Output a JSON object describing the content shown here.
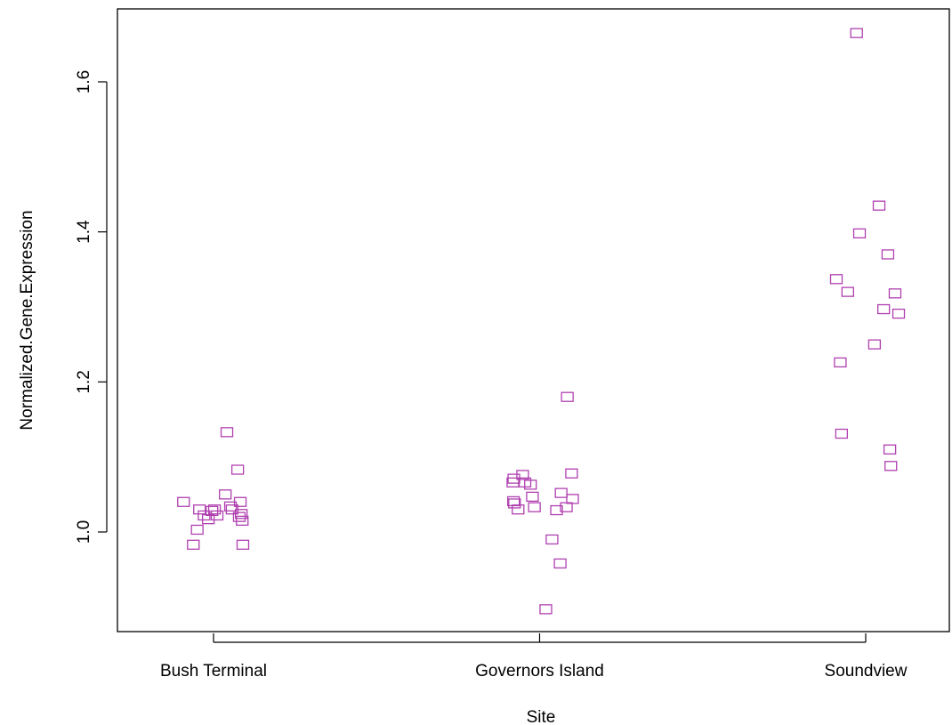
{
  "chart_data": {
    "type": "scatter",
    "title": "",
    "xlabel": "Site",
    "ylabel": "Normalized.Gene.Expression",
    "categories": [
      "Bush Terminal",
      "Governors Island",
      "Soundview"
    ],
    "ylim": [
      0.86,
      1.69
    ],
    "yticks": [
      "1.0",
      "1.2",
      "1.4",
      "1.6"
    ],
    "grid": false,
    "marker": "open-square",
    "marker_color": "#b040b0",
    "points": [
      {
        "x": 0.908,
        "y": 1.04
      },
      {
        "x": 0.938,
        "y": 0.983
      },
      {
        "x": 0.95,
        "y": 1.003
      },
      {
        "x": 0.957,
        "y": 1.03
      },
      {
        "x": 0.971,
        "y": 1.022
      },
      {
        "x": 0.984,
        "y": 1.017
      },
      {
        "x": 0.995,
        "y": 1.028
      },
      {
        "x": 1.003,
        "y": 1.03
      },
      {
        "x": 1.011,
        "y": 1.022
      },
      {
        "x": 1.036,
        "y": 1.05
      },
      {
        "x": 1.041,
        "y": 1.133
      },
      {
        "x": 1.052,
        "y": 1.034
      },
      {
        "x": 1.057,
        "y": 1.03
      },
      {
        "x": 1.074,
        "y": 1.083
      },
      {
        "x": 1.079,
        "y": 1.02
      },
      {
        "x": 1.082,
        "y": 1.04
      },
      {
        "x": 1.085,
        "y": 1.024
      },
      {
        "x": 1.088,
        "y": 1.015
      },
      {
        "x": 1.09,
        "y": 0.983
      },
      {
        "x": 1.918,
        "y": 1.066
      },
      {
        "x": 1.92,
        "y": 1.041
      },
      {
        "x": 1.921,
        "y": 1.071
      },
      {
        "x": 1.923,
        "y": 1.038
      },
      {
        "x": 1.934,
        "y": 1.03
      },
      {
        "x": 1.948,
        "y": 1.076
      },
      {
        "x": 1.955,
        "y": 1.066
      },
      {
        "x": 1.972,
        "y": 1.063
      },
      {
        "x": 1.978,
        "y": 1.047
      },
      {
        "x": 1.984,
        "y": 1.033
      },
      {
        "x": 2.019,
        "y": 0.897
      },
      {
        "x": 2.038,
        "y": 0.99
      },
      {
        "x": 2.052,
        "y": 1.029
      },
      {
        "x": 2.063,
        "y": 0.958
      },
      {
        "x": 2.066,
        "y": 1.052
      },
      {
        "x": 2.082,
        "y": 1.033
      },
      {
        "x": 2.085,
        "y": 1.18
      },
      {
        "x": 2.098,
        "y": 1.078
      },
      {
        "x": 2.101,
        "y": 1.044
      },
      {
        "x": 2.91,
        "y": 1.337
      },
      {
        "x": 2.922,
        "y": 1.226
      },
      {
        "x": 2.926,
        "y": 1.131
      },
      {
        "x": 2.945,
        "y": 1.32
      },
      {
        "x": 2.972,
        "y": 1.665
      },
      {
        "x": 2.981,
        "y": 1.398
      },
      {
        "x": 3.027,
        "y": 1.25
      },
      {
        "x": 3.041,
        "y": 1.435
      },
      {
        "x": 3.055,
        "y": 1.297
      },
      {
        "x": 3.068,
        "y": 1.37
      },
      {
        "x": 3.074,
        "y": 1.11
      },
      {
        "x": 3.077,
        "y": 1.088
      },
      {
        "x": 3.09,
        "y": 1.318
      },
      {
        "x": 3.101,
        "y": 1.291
      }
    ]
  }
}
